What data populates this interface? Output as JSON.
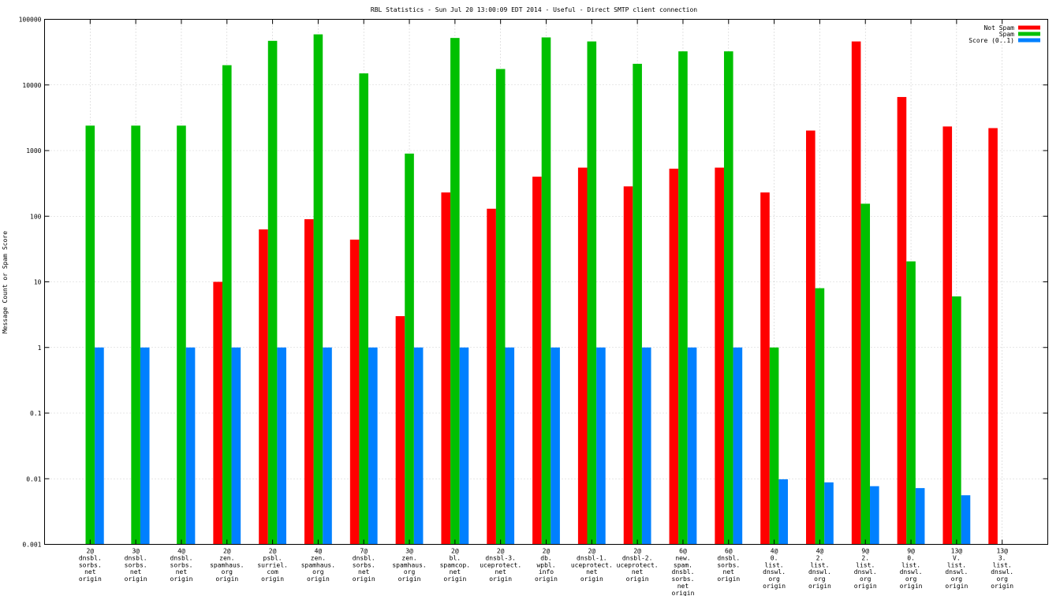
{
  "chart_data": {
    "type": "bar",
    "title": "RBL Statistics - Sun Jul 20 13:00:09 EDT 2014 - Useful - Direct SMTP client connection",
    "xlabel": "",
    "ylabel": "Message Count or Spam Score",
    "yscale": "log",
    "ylim": [
      0.001,
      100000
    ],
    "yticks": [
      "0.001",
      "0.01",
      "0.1",
      "1",
      "10",
      "100",
      "1000",
      "10000",
      "100000"
    ],
    "grid": true,
    "legend_position": "top-right",
    "categories": [
      [
        "2@",
        "dnsbl.",
        "sorbs.",
        "net",
        "origin"
      ],
      [
        "3@",
        "dnsbl.",
        "sorbs.",
        "net",
        "origin"
      ],
      [
        "4@",
        "dnsbl.",
        "sorbs.",
        "net",
        "origin"
      ],
      [
        "2@",
        "zen.",
        "spamhaus.",
        "org",
        "origin"
      ],
      [
        "2@",
        "psbl.",
        "surriel.",
        "com",
        "origin"
      ],
      [
        "4@",
        "zen.",
        "spamhaus.",
        "org",
        "origin"
      ],
      [
        "7@",
        "dnsbl.",
        "sorbs.",
        "net",
        "origin"
      ],
      [
        "3@",
        "zen.",
        "spamhaus.",
        "org",
        "origin"
      ],
      [
        "2@",
        "bl.",
        "spamcop.",
        "net",
        "origin"
      ],
      [
        "2@",
        "dnsbl-3.",
        "uceprotect.",
        "net",
        "origin"
      ],
      [
        "2@",
        "db.",
        "wpbl.",
        "info",
        "origin"
      ],
      [
        "2@",
        "dnsbl-1.",
        "uceprotect.",
        "net",
        "origin"
      ],
      [
        "2@",
        "dnsbl-2.",
        "uceprotect.",
        "net",
        "origin"
      ],
      [
        "6@",
        "new.",
        "spam.",
        "dnsbl.",
        "sorbs.",
        "net",
        "origin"
      ],
      [
        "6@",
        "dnsbl.",
        "sorbs.",
        "net",
        "origin"
      ],
      [
        "4@",
        "0.",
        "list.",
        "dnswl.",
        "org",
        "origin"
      ],
      [
        "4@",
        "2.",
        "list.",
        "dnswl.",
        "org",
        "origin"
      ],
      [
        "9@",
        "2.",
        "list.",
        "dnswl.",
        "org",
        "origin"
      ],
      [
        "9@",
        "0.",
        "list.",
        "dnswl.",
        "org",
        "origin"
      ],
      [
        "13@",
        "V.",
        "list.",
        "dnswl.",
        "org",
        "origin"
      ],
      [
        "13@",
        "3.",
        "list.",
        "dnswl.",
        "org",
        "origin"
      ]
    ],
    "series": [
      {
        "name": "Not Spam",
        "color": "#ff0000",
        "values": [
          null,
          null,
          null,
          10,
          63,
          90,
          44,
          3,
          230,
          130,
          400,
          550,
          285,
          530,
          550,
          230,
          2020,
          46000,
          6550,
          2330,
          2200
        ]
      },
      {
        "name": "Spam",
        "color": "#00c000",
        "values": [
          2400,
          2400,
          2400,
          20000,
          47000,
          59000,
          15000,
          900,
          52000,
          17500,
          53000,
          46000,
          21000,
          32500,
          32500,
          1,
          8,
          155,
          20.5,
          6,
          null
        ]
      },
      {
        "name": "Score (0..1)",
        "color": "#0080ff",
        "values": [
          1,
          1,
          1,
          1,
          1,
          1,
          1,
          1,
          1,
          1,
          1,
          1,
          1,
          1,
          1,
          0.0098,
          0.0088,
          0.0077,
          0.0072,
          0.0056,
          null
        ]
      }
    ]
  }
}
